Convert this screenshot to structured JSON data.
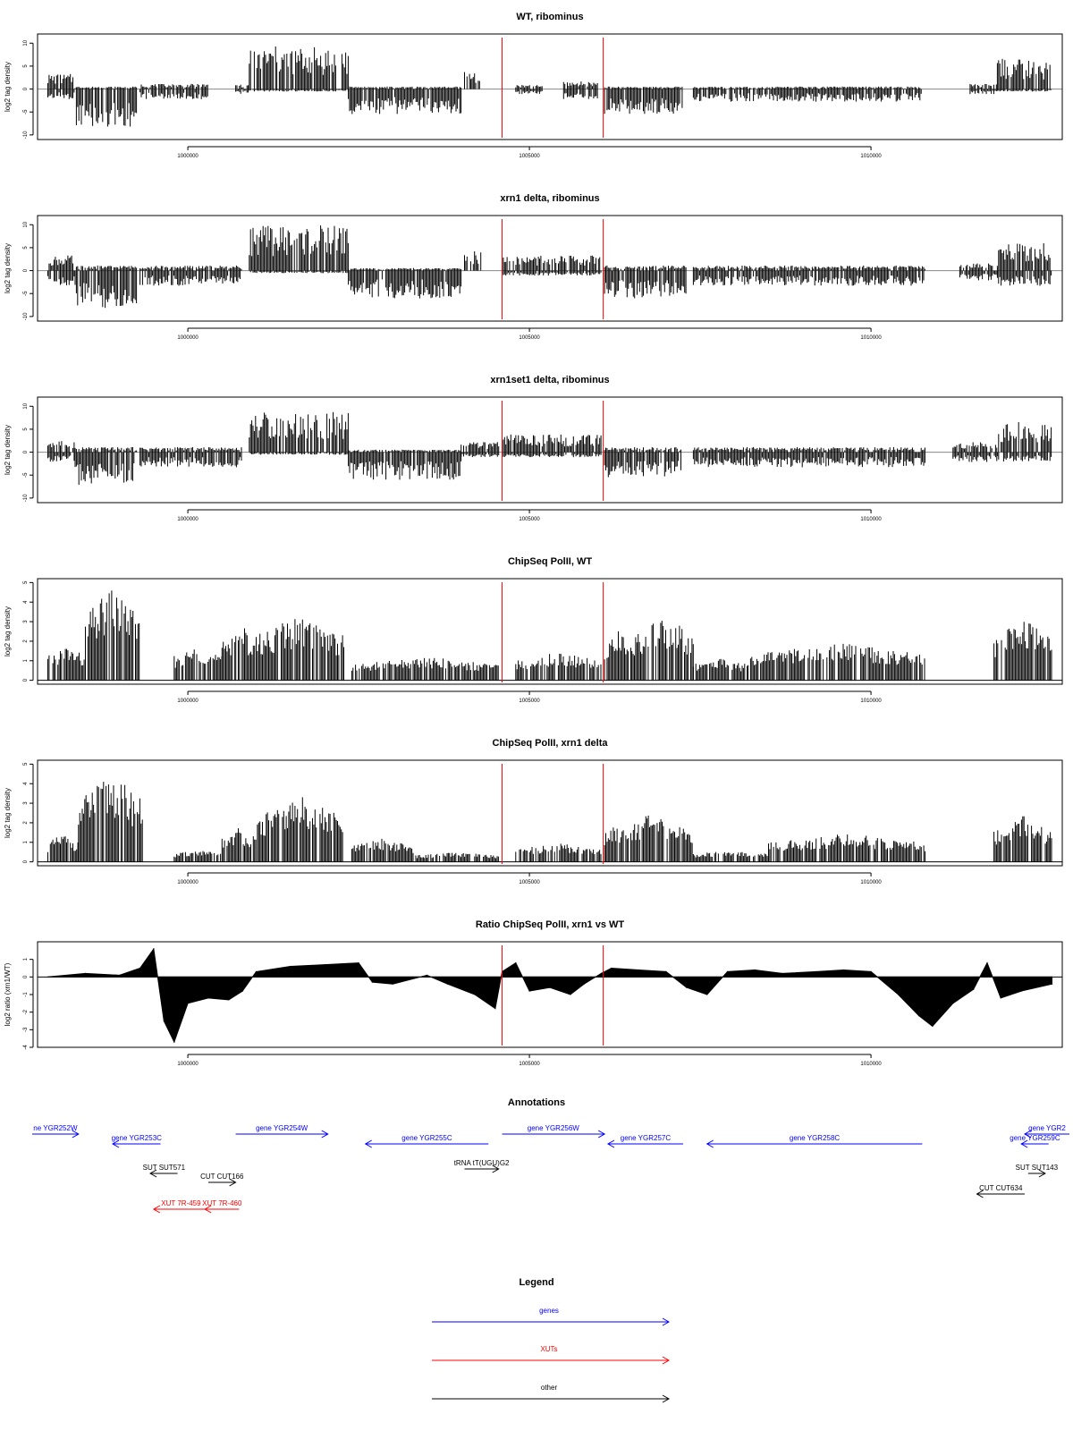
{
  "chart_data": [
    {
      "type": "bar",
      "title": "WT, ribominus",
      "ylabel": "log2 tag density",
      "ylim": [
        -11,
        12
      ],
      "yticks": [
        -10,
        -5,
        0,
        5,
        10
      ],
      "xlim": [
        997800,
        1012800
      ],
      "xticks": [
        1000000,
        1005000,
        1010000
      ],
      "markers": [
        1004600,
        1006080
      ],
      "segments": [
        {
          "from": 997950,
          "to": 998350,
          "pos": 3,
          "neg": -2
        },
        {
          "from": 998350,
          "to": 999250,
          "pos": 0.5,
          "neg": -7.5
        },
        {
          "from": 999300,
          "to": 1000300,
          "pos": 1,
          "neg": -2
        },
        {
          "from": 1000700,
          "to": 1000900,
          "pos": 1,
          "neg": -1
        },
        {
          "from": 1000900,
          "to": 1002350,
          "pos": 8.5,
          "neg": -0.5
        },
        {
          "from": 1002350,
          "to": 1004000,
          "pos": 0.5,
          "neg": -5
        },
        {
          "from": 1004050,
          "to": 1004300,
          "pos": 3.5,
          "neg": 0
        },
        {
          "from": 1004800,
          "to": 1005200,
          "pos": 0.8,
          "neg": -1
        },
        {
          "from": 1005500,
          "to": 1006000,
          "pos": 1.5,
          "neg": -2
        },
        {
          "from": 1006100,
          "to": 1007250,
          "pos": 0.5,
          "neg": -5
        },
        {
          "from": 1007400,
          "to": 1010750,
          "pos": 0.5,
          "neg": -2.5
        },
        {
          "from": 1011450,
          "to": 1011850,
          "pos": 1,
          "neg": -1
        },
        {
          "from": 1011850,
          "to": 1012650,
          "pos": 6,
          "neg": -0.5
        }
      ]
    },
    {
      "type": "bar",
      "title": "xrn1 delta, ribominus",
      "ylabel": "log2 tag density",
      "ylim": [
        -11,
        12
      ],
      "yticks": [
        -10,
        -5,
        0,
        5,
        10
      ],
      "xlim": [
        997800,
        1012800
      ],
      "xticks": [
        1000000,
        1005000,
        1010000
      ],
      "markers": [
        1004600,
        1006080
      ],
      "segments": [
        {
          "from": 997950,
          "to": 998350,
          "pos": 3,
          "neg": -3
        },
        {
          "from": 998350,
          "to": 999250,
          "pos": 1,
          "neg": -7.5
        },
        {
          "from": 999300,
          "to": 1000800,
          "pos": 1,
          "neg": -3
        },
        {
          "from": 1000900,
          "to": 1002350,
          "pos": 9,
          "neg": -0.5
        },
        {
          "from": 1002350,
          "to": 1004000,
          "pos": 0.5,
          "neg": -5.5
        },
        {
          "from": 1004050,
          "to": 1004300,
          "pos": 4,
          "neg": 0
        },
        {
          "from": 1004600,
          "to": 1006050,
          "pos": 3,
          "neg": -1
        },
        {
          "from": 1006100,
          "to": 1007300,
          "pos": 1,
          "neg": -5.5
        },
        {
          "from": 1007400,
          "to": 1010800,
          "pos": 1,
          "neg": -3
        },
        {
          "from": 1011300,
          "to": 1011850,
          "pos": 1.5,
          "neg": -2
        },
        {
          "from": 1011850,
          "to": 1012650,
          "pos": 5.5,
          "neg": -3
        }
      ]
    },
    {
      "type": "bar",
      "title": "xrn1set1 delta, ribominus",
      "ylabel": "log2 tag density",
      "ylim": [
        -11,
        12
      ],
      "yticks": [
        -10,
        -5,
        0,
        5,
        10
      ],
      "xlim": [
        997800,
        1012800
      ],
      "xticks": [
        1000000,
        1005000,
        1010000
      ],
      "markers": [
        1004600,
        1006080
      ],
      "segments": [
        {
          "from": 997950,
          "to": 998350,
          "pos": 2.5,
          "neg": -2
        },
        {
          "from": 998350,
          "to": 999250,
          "pos": 1,
          "neg": -6.5
        },
        {
          "from": 999300,
          "to": 1000800,
          "pos": 1,
          "neg": -3
        },
        {
          "from": 1000900,
          "to": 1002350,
          "pos": 8,
          "neg": -0.5
        },
        {
          "from": 1002350,
          "to": 1004000,
          "pos": 0.5,
          "neg": -5.5
        },
        {
          "from": 1004000,
          "to": 1004550,
          "pos": 2,
          "neg": -1
        },
        {
          "from": 1004600,
          "to": 1006050,
          "pos": 3.5,
          "neg": -1
        },
        {
          "from": 1006100,
          "to": 1007250,
          "pos": 1,
          "neg": -5
        },
        {
          "from": 1007400,
          "to": 1010800,
          "pos": 1,
          "neg": -3
        },
        {
          "from": 1011200,
          "to": 1011850,
          "pos": 2,
          "neg": -2
        },
        {
          "from": 1011850,
          "to": 1012650,
          "pos": 6,
          "neg": -2
        }
      ]
    },
    {
      "type": "bar",
      "title": "ChipSeq PolII, WT",
      "ylabel": "log2 tag density",
      "ylim": [
        -0.2,
        5.2
      ],
      "yticks": [
        0,
        1,
        2,
        3,
        4,
        5
      ],
      "xlim": [
        997800,
        1012800
      ],
      "xticks": [
        1000000,
        1005000,
        1010000
      ],
      "markers": [
        1004600,
        1006080
      ],
      "segments": [
        {
          "from": 997950,
          "to": 998500,
          "pos": 1.5
        },
        {
          "from": 998500,
          "to": 999300,
          "pos": 4
        },
        {
          "from": 999800,
          "to": 1000500,
          "pos": 1.5
        },
        {
          "from": 1000500,
          "to": 1001000,
          "pos": 2.5
        },
        {
          "from": 1001000,
          "to": 1002300,
          "pos": 2.8
        },
        {
          "from": 1002400,
          "to": 1004550,
          "pos": 1
        },
        {
          "from": 1004800,
          "to": 1006050,
          "pos": 1.2
        },
        {
          "from": 1006100,
          "to": 1006500,
          "pos": 2.2
        },
        {
          "from": 1006500,
          "to": 1007400,
          "pos": 2.8
        },
        {
          "from": 1007400,
          "to": 1008200,
          "pos": 1
        },
        {
          "from": 1008200,
          "to": 1010800,
          "pos": 1.6
        },
        {
          "from": 1011800,
          "to": 1012650,
          "pos": 2.6
        }
      ]
    },
    {
      "type": "bar",
      "title": "ChipSeq PolII, xrn1 delta",
      "ylabel": "log2 tag density",
      "ylim": [
        -0.2,
        5.2
      ],
      "yticks": [
        0,
        1,
        2,
        3,
        4,
        5
      ],
      "xlim": [
        997800,
        1012800
      ],
      "xticks": [
        1000000,
        1005000,
        1010000
      ],
      "markers": [
        1004600,
        1006080
      ],
      "segments": [
        {
          "from": 997950,
          "to": 998400,
          "pos": 1.2
        },
        {
          "from": 998400,
          "to": 999350,
          "pos": 3.8
        },
        {
          "from": 999800,
          "to": 1000500,
          "pos": 0.5
        },
        {
          "from": 1000500,
          "to": 1001000,
          "pos": 1.5
        },
        {
          "from": 1001000,
          "to": 1002300,
          "pos": 2.8
        },
        {
          "from": 1002400,
          "to": 1003300,
          "pos": 1
        },
        {
          "from": 1003300,
          "to": 1004550,
          "pos": 0.4
        },
        {
          "from": 1004800,
          "to": 1006050,
          "pos": 0.8
        },
        {
          "from": 1006100,
          "to": 1007400,
          "pos": 2
        },
        {
          "from": 1007400,
          "to": 1008500,
          "pos": 0.5
        },
        {
          "from": 1008500,
          "to": 1010800,
          "pos": 1.2
        },
        {
          "from": 1011800,
          "to": 1012650,
          "pos": 2
        }
      ]
    },
    {
      "type": "area",
      "title": "Ratio ChipSeq PolII, xrn1 vs WT",
      "ylabel": "log2 ratio (xrn1/WT)",
      "ylim": [
        -4,
        2
      ],
      "yticks": [
        -4,
        -3,
        -2,
        -1,
        0,
        1
      ],
      "xlim": [
        997800,
        1012800
      ],
      "xticks": [
        1000000,
        1005000,
        1010000
      ],
      "markers": [
        1004600,
        1006080
      ],
      "x": [
        997950,
        998500,
        999000,
        999300,
        999500,
        999650,
        999800,
        1000000,
        1000300,
        1000600,
        1000800,
        1001000,
        1001500,
        1002000,
        1002500,
        1002700,
        1003000,
        1003500,
        1003800,
        1004200,
        1004500,
        1004600,
        1004800,
        1005000,
        1005300,
        1005600,
        1005800,
        1006050,
        1006200,
        1006600,
        1007000,
        1007300,
        1007600,
        1007900,
        1008300,
        1008700,
        1009200,
        1009600,
        1010000,
        1010400,
        1010700,
        1010900,
        1011200,
        1011500,
        1011700,
        1011900,
        1012200,
        1012650
      ],
      "y": [
        0,
        0.2,
        0.1,
        0.5,
        1.6,
        -2.5,
        -3.7,
        -1.5,
        -1.2,
        -1.3,
        -0.8,
        0.3,
        0.6,
        0.7,
        0.8,
        -0.3,
        -0.4,
        0.1,
        -0.4,
        -1.0,
        -1.8,
        0.3,
        0.8,
        -0.8,
        -0.6,
        -1.0,
        -0.4,
        0.2,
        0.5,
        0.4,
        0.3,
        -0.6,
        -1.0,
        0.3,
        0.4,
        0.2,
        0.3,
        0.4,
        0.3,
        -1.0,
        -2.2,
        -2.8,
        -1.5,
        -0.7,
        0.8,
        -1.2,
        -0.8,
        -0.4
      ]
    }
  ],
  "annotations": {
    "title": "Annotations",
    "items": [
      {
        "label": "ne YGR252W",
        "color": "#0000ff",
        "from": 997500,
        "to": 998400,
        "dir": "right",
        "row": 0
      },
      {
        "label": "gene YGR253C",
        "color": "#0000ff",
        "from": 998900,
        "to": 999600,
        "dir": "left",
        "row": 1
      },
      {
        "label": "gene YGR254W",
        "color": "#0000ff",
        "from": 1000700,
        "to": 1002050,
        "dir": "right",
        "row": 0
      },
      {
        "label": "gene YGR255C",
        "color": "#0000ff",
        "from": 1002600,
        "to": 1004400,
        "dir": "left",
        "row": 1
      },
      {
        "label": "tRNA tT(UGU)G2",
        "color": "#000000",
        "from": 1004050,
        "to": 1004550,
        "dir": "right",
        "row": 2
      },
      {
        "label": "gene YGR256W",
        "color": "#0000ff",
        "from": 1004600,
        "to": 1006100,
        "dir": "right",
        "row": 0
      },
      {
        "label": "gene YGR257C",
        "color": "#0000ff",
        "from": 1006150,
        "to": 1007250,
        "dir": "left",
        "row": 1
      },
      {
        "label": "gene YGR258C",
        "color": "#0000ff",
        "from": 1007600,
        "to": 1010750,
        "dir": "left",
        "row": 1
      },
      {
        "label": "gene YGR2",
        "color": "#0000ff",
        "from": 1012250,
        "to": 1013400,
        "dir": "left",
        "row": 0
      },
      {
        "label": "gene YGR259C",
        "color": "#0000ff",
        "from": 1012200,
        "to": 1012600,
        "dir": "left",
        "row": 1
      },
      {
        "label": "SUT SUT571",
        "color": "#000000",
        "from": 999450,
        "to": 999850,
        "dir": "left",
        "row": 3
      },
      {
        "label": "CUT CUT166",
        "color": "#000000",
        "from": 1000300,
        "to": 1000700,
        "dir": "right",
        "row": 4
      },
      {
        "label": "SUT SUT143",
        "color": "#000000",
        "from": 1012300,
        "to": 1012550,
        "dir": "right",
        "row": 3
      },
      {
        "label": "CUT CUT634",
        "color": "#000000",
        "from": 1011550,
        "to": 1012250,
        "dir": "left",
        "row": 5
      },
      {
        "label": "XUT 7R-459",
        "color": "#ff0000",
        "from": 999500,
        "to": 1000300,
        "dir": "left",
        "row": 6
      },
      {
        "label": "XUT 7R-460",
        "color": "#ff0000",
        "from": 1000250,
        "to": 1000750,
        "dir": "left",
        "row": 6
      }
    ]
  },
  "legend": {
    "title": "Legend",
    "items": [
      {
        "label": "genes",
        "color": "#0000ff"
      },
      {
        "label": "XUTs",
        "color": "#ff0000"
      },
      {
        "label": "other",
        "color": "#000000"
      }
    ]
  }
}
